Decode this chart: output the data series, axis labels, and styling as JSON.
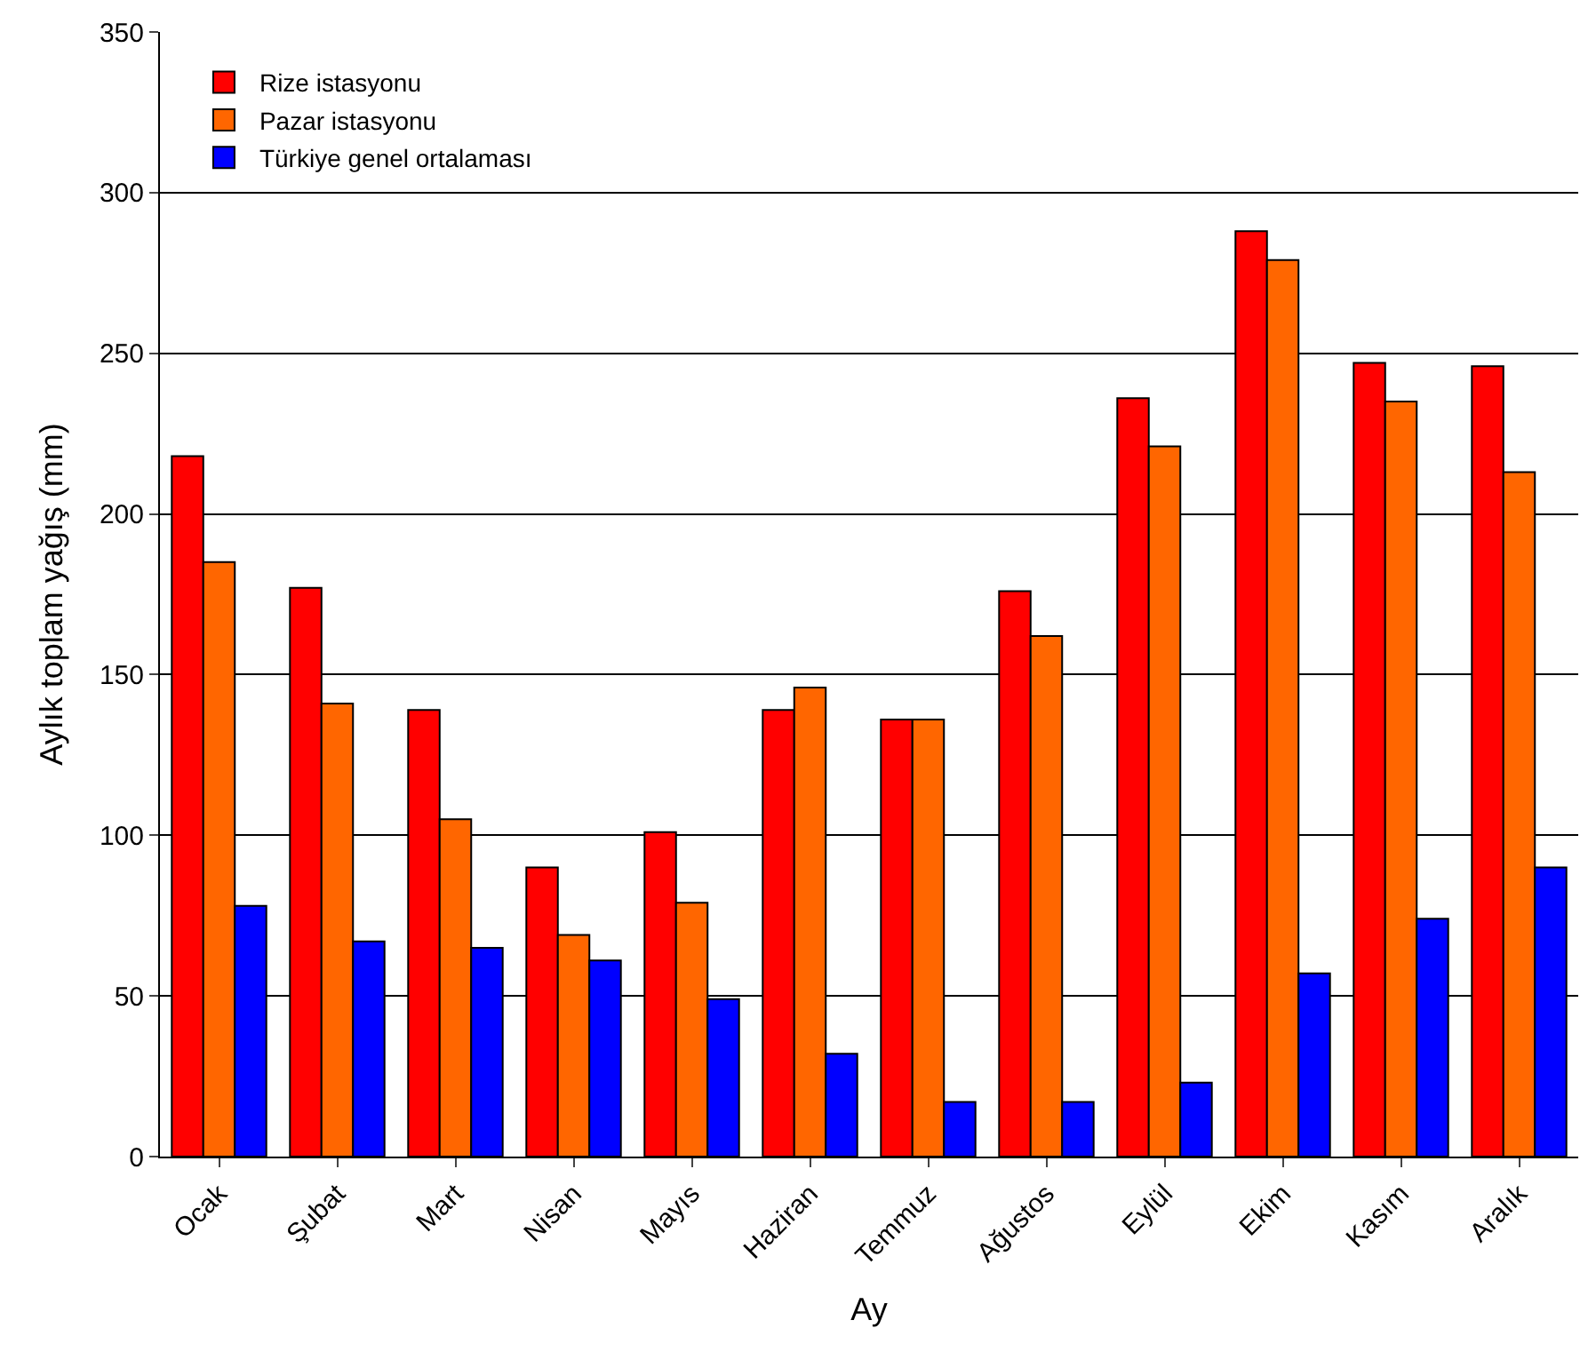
{
  "chart_data": {
    "type": "bar",
    "xlabel": "Ay",
    "ylabel": "Aylık toplam yağış (mm)",
    "categories": [
      "Ocak",
      "Şubat",
      "Mart",
      "Nisan",
      "Mayıs",
      "Haziran",
      "Temmuz",
      "Ağustos",
      "Eylül",
      "Ekim",
      "Kasım",
      "Aralık"
    ],
    "series": [
      {
        "name": "Rize istasyonu",
        "color": "#ff0000",
        "values": [
          218,
          177,
          139,
          90,
          101,
          139,
          136,
          176,
          236,
          288,
          247,
          246
        ]
      },
      {
        "name": "Pazar istasyonu",
        "color": "#ff6600",
        "values": [
          185,
          141,
          105,
          69,
          79,
          146,
          136,
          162,
          221,
          279,
          235,
          213
        ]
      },
      {
        "name": "Türkiye genel ortalaması",
        "color": "#0000ff",
        "values": [
          78,
          67,
          65,
          61,
          49,
          32,
          17,
          17,
          23,
          57,
          74,
          90
        ]
      }
    ],
    "ylim": [
      0,
      350
    ],
    "yticks": [
      0,
      50,
      100,
      150,
      200,
      250,
      300,
      350
    ],
    "grid": "y",
    "legend": "top left"
  }
}
